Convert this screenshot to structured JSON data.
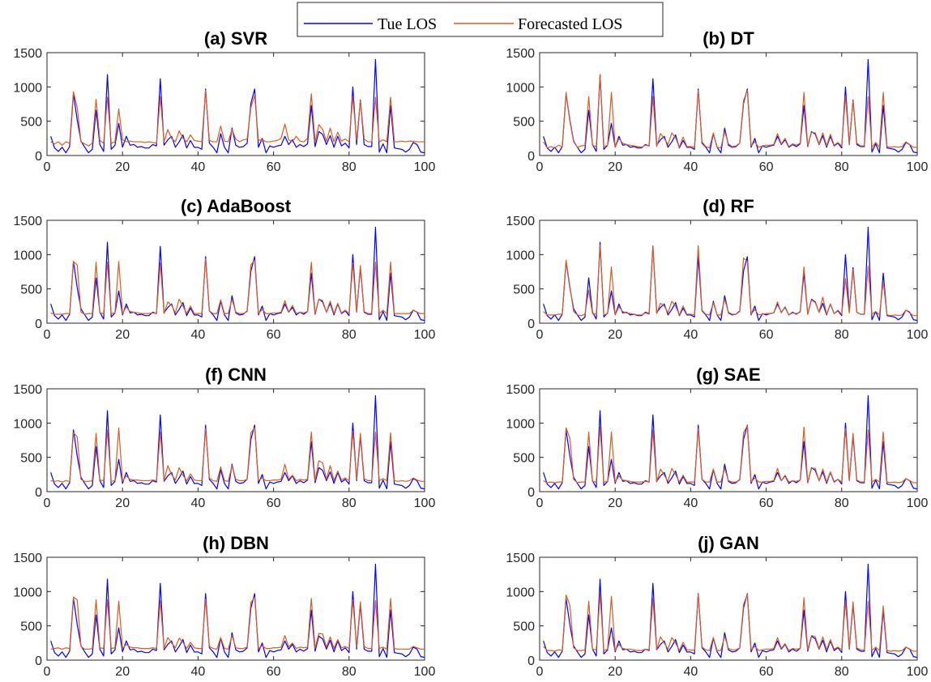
{
  "legend": {
    "items": [
      {
        "label": "Tue LOS",
        "color": "#0000ff"
      },
      {
        "label": "Forecasted LOS",
        "color": "#e05a1e"
      }
    ]
  },
  "chart_data": {
    "type": "line",
    "grid": false,
    "legend_position": "top-center",
    "xlim": [
      0,
      100
    ],
    "ylim": [
      0,
      1500
    ],
    "xticks": [
      0,
      20,
      40,
      60,
      80,
      100
    ],
    "yticks": [
      0,
      500,
      1000,
      1500
    ],
    "x": [
      1,
      2,
      3,
      4,
      5,
      6,
      7,
      8,
      9,
      10,
      11,
      12,
      13,
      14,
      15,
      16,
      17,
      18,
      19,
      20,
      21,
      22,
      23,
      24,
      25,
      26,
      27,
      28,
      29,
      30,
      31,
      32,
      33,
      34,
      35,
      36,
      37,
      38,
      39,
      40,
      41,
      42,
      43,
      44,
      45,
      46,
      47,
      48,
      49,
      50,
      51,
      52,
      53,
      54,
      55,
      56,
      57,
      58,
      59,
      60,
      61,
      62,
      63,
      64,
      65,
      66,
      67,
      68,
      69,
      70,
      71,
      72,
      73,
      74,
      75,
      76,
      77,
      78,
      79,
      80,
      81,
      82,
      83,
      84,
      85,
      86,
      87,
      88,
      89,
      90,
      91,
      92,
      93,
      94,
      95,
      96,
      97,
      98,
      99,
      100
    ],
    "true_values": [
      280,
      110,
      60,
      120,
      40,
      130,
      900,
      520,
      210,
      120,
      40,
      90,
      660,
      160,
      60,
      1180,
      90,
      150,
      470,
      120,
      280,
      150,
      160,
      120,
      130,
      110,
      110,
      160,
      140,
      1120,
      150,
      230,
      280,
      120,
      200,
      300,
      110,
      220,
      120,
      120,
      90,
      970,
      180,
      120,
      40,
      320,
      120,
      40,
      400,
      150,
      120,
      130,
      180,
      760,
      970,
      120,
      250,
      40,
      140,
      120,
      140,
      150,
      280,
      160,
      230,
      120,
      160,
      130,
      170,
      730,
      130,
      350,
      310,
      160,
      290,
      120,
      280,
      140,
      180,
      110,
      1000,
      160,
      810,
      160,
      130,
      130,
      1400,
      50,
      170,
      40,
      730,
      110,
      100,
      90,
      50,
      90,
      190,
      160,
      50,
      40
    ],
    "panels": [
      {
        "title": "(a) SVR",
        "forecast": [
          200,
          170,
          200,
          150,
          200,
          180,
          930,
          700,
          200,
          170,
          140,
          180,
          820,
          220,
          180,
          850,
          180,
          200,
          680,
          230,
          200,
          210,
          200,
          200,
          200,
          190,
          200,
          190,
          180,
          860,
          200,
          380,
          250,
          200,
          360,
          250,
          200,
          300,
          220,
          210,
          200,
          950,
          220,
          200,
          200,
          430,
          210,
          200,
          380,
          240,
          200,
          230,
          240,
          700,
          880,
          220,
          230,
          200,
          200,
          210,
          220,
          250,
          460,
          230,
          200,
          280,
          210,
          200,
          250,
          900,
          200,
          450,
          380,
          210,
          400,
          200,
          340,
          210,
          240,
          200,
          860,
          220,
          800,
          240,
          200,
          200,
          850,
          200,
          230,
          200,
          850,
          200,
          200,
          210,
          200,
          210,
          210,
          200,
          200,
          200
        ]
      },
      {
        "title": "(b) DT",
        "forecast": [
          200,
          110,
          130,
          110,
          150,
          130,
          920,
          500,
          200,
          120,
          140,
          150,
          860,
          150,
          130,
          1180,
          130,
          150,
          920,
          120,
          250,
          180,
          160,
          150,
          140,
          130,
          120,
          150,
          140,
          860,
          130,
          320,
          250,
          160,
          330,
          260,
          120,
          270,
          130,
          130,
          120,
          950,
          200,
          130,
          110,
          330,
          120,
          110,
          350,
          170,
          130,
          140,
          180,
          800,
          950,
          140,
          200,
          120,
          140,
          150,
          150,
          160,
          320,
          170,
          250,
          130,
          170,
          150,
          180,
          920,
          140,
          340,
          330,
          170,
          330,
          140,
          310,
          150,
          190,
          140,
          870,
          170,
          800,
          180,
          140,
          140,
          860,
          120,
          190,
          120,
          920,
          130,
          120,
          130,
          120,
          130,
          200,
          160,
          120,
          120
        ]
      },
      {
        "title": "(c) AdaBoost",
        "forecast": [
          150,
          130,
          130,
          130,
          140,
          140,
          900,
          850,
          160,
          130,
          140,
          140,
          890,
          150,
          140,
          890,
          140,
          150,
          900,
          140,
          240,
          170,
          160,
          150,
          140,
          140,
          140,
          150,
          140,
          880,
          140,
          310,
          260,
          150,
          350,
          250,
          140,
          250,
          140,
          140,
          140,
          940,
          180,
          140,
          140,
          340,
          140,
          140,
          350,
          160,
          140,
          140,
          170,
          850,
          920,
          140,
          200,
          140,
          140,
          150,
          150,
          160,
          330,
          160,
          260,
          140,
          160,
          150,
          170,
          890,
          140,
          350,
          330,
          160,
          320,
          140,
          290,
          150,
          190,
          140,
          880,
          160,
          840,
          170,
          140,
          140,
          890,
          140,
          190,
          140,
          890,
          140,
          140,
          140,
          140,
          140,
          190,
          160,
          140,
          140
        ]
      },
      {
        "title": "(d) RF",
        "forecast": [
          170,
          120,
          120,
          120,
          130,
          130,
          920,
          540,
          170,
          120,
          110,
          130,
          480,
          140,
          130,
          1140,
          120,
          140,
          820,
          120,
          240,
          170,
          150,
          140,
          130,
          120,
          120,
          150,
          130,
          1130,
          140,
          290,
          250,
          150,
          320,
          250,
          120,
          250,
          130,
          130,
          120,
          1130,
          190,
          130,
          120,
          300,
          120,
          120,
          350,
          160,
          130,
          130,
          170,
          950,
          900,
          130,
          200,
          120,
          130,
          140,
          140,
          150,
          310,
          150,
          240,
          120,
          150,
          140,
          160,
          820,
          130,
          340,
          300,
          160,
          380,
          130,
          280,
          140,
          190,
          130,
          650,
          150,
          780,
          160,
          130,
          130,
          830,
          130,
          170,
          120,
          610,
          120,
          110,
          120,
          110,
          120,
          190,
          150,
          110,
          110
        ]
      },
      {
        "title": "(f) CNN",
        "forecast": [
          160,
          150,
          160,
          140,
          160,
          150,
          860,
          800,
          180,
          150,
          150,
          160,
          850,
          170,
          160,
          900,
          150,
          160,
          930,
          150,
          230,
          180,
          170,
          170,
          160,
          160,
          160,
          170,
          160,
          870,
          160,
          380,
          250,
          170,
          350,
          240,
          160,
          260,
          170,
          160,
          160,
          920,
          200,
          160,
          150,
          360,
          160,
          150,
          380,
          180,
          160,
          160,
          180,
          860,
          930,
          160,
          200,
          160,
          160,
          170,
          170,
          180,
          400,
          180,
          240,
          160,
          180,
          170,
          180,
          870,
          160,
          450,
          420,
          180,
          380,
          160,
          300,
          170,
          200,
          160,
          880,
          180,
          850,
          190,
          160,
          160,
          870,
          160,
          190,
          160,
          860,
          160,
          150,
          160,
          150,
          160,
          200,
          170,
          150,
          150
        ]
      },
      {
        "title": "(g) SAE",
        "forecast": [
          160,
          130,
          140,
          130,
          140,
          140,
          930,
          780,
          180,
          130,
          140,
          140,
          870,
          150,
          140,
          940,
          140,
          150,
          870,
          140,
          230,
          170,
          160,
          150,
          140,
          140,
          140,
          150,
          140,
          900,
          140,
          330,
          240,
          150,
          340,
          250,
          140,
          240,
          140,
          140,
          140,
          920,
          180,
          140,
          140,
          330,
          140,
          140,
          340,
          160,
          140,
          140,
          170,
          860,
          960,
          140,
          200,
          140,
          140,
          150,
          150,
          160,
          340,
          160,
          240,
          140,
          160,
          150,
          170,
          940,
          140,
          340,
          340,
          160,
          330,
          140,
          290,
          150,
          180,
          140,
          920,
          160,
          850,
          170,
          140,
          140,
          900,
          140,
          180,
          140,
          870,
          140,
          130,
          140,
          130,
          140,
          190,
          160,
          130,
          130
        ]
      },
      {
        "title": "(h) DBN",
        "forecast": [
          160,
          170,
          180,
          160,
          180,
          170,
          920,
          880,
          200,
          160,
          160,
          170,
          880,
          180,
          170,
          880,
          170,
          180,
          860,
          170,
          230,
          190,
          180,
          180,
          170,
          170,
          170,
          180,
          170,
          870,
          170,
          330,
          250,
          180,
          320,
          260,
          170,
          260,
          180,
          170,
          170,
          890,
          200,
          170,
          160,
          330,
          170,
          160,
          360,
          180,
          170,
          170,
          190,
          840,
          920,
          170,
          210,
          170,
          170,
          180,
          180,
          190,
          360,
          190,
          250,
          170,
          190,
          180,
          190,
          900,
          170,
          390,
          380,
          190,
          340,
          170,
          300,
          180,
          200,
          170,
          880,
          190,
          850,
          200,
          170,
          170,
          870,
          170,
          190,
          160,
          900,
          170,
          160,
          160,
          160,
          160,
          200,
          180,
          160,
          160
        ]
      },
      {
        "title": "(j) GAN",
        "forecast": [
          200,
          140,
          140,
          130,
          150,
          140,
          950,
          800,
          180,
          140,
          140,
          150,
          860,
          160,
          150,
          960,
          140,
          160,
          930,
          140,
          230,
          170,
          160,
          160,
          150,
          140,
          140,
          160,
          150,
          900,
          150,
          340,
          250,
          160,
          330,
          250,
          140,
          260,
          150,
          150,
          140,
          960,
          190,
          150,
          140,
          330,
          140,
          140,
          350,
          170,
          150,
          150,
          180,
          810,
          960,
          150,
          200,
          140,
          150,
          160,
          160,
          170,
          330,
          170,
          240,
          140,
          170,
          160,
          170,
          910,
          150,
          360,
          340,
          170,
          340,
          150,
          300,
          160,
          190,
          150,
          860,
          170,
          850,
          180,
          150,
          150,
          860,
          140,
          190,
          140,
          790,
          140,
          130,
          140,
          130,
          140,
          190,
          160,
          130,
          130
        ]
      }
    ]
  }
}
